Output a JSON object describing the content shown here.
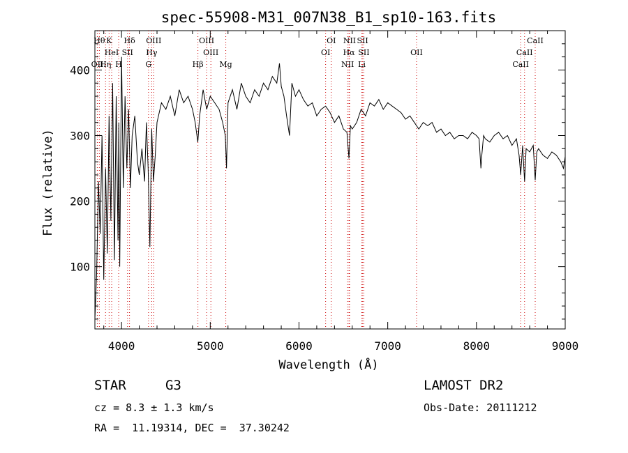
{
  "chart_data": {
    "type": "line",
    "title": "spec-55908-M31_007N38_B1_sp10-163.fits",
    "xlabel": "Wavelength (Å)",
    "ylabel": "Flux (relative)",
    "xlim": [
      3700,
      9000
    ],
    "ylim": [
      5,
      460
    ],
    "x_ticks": [
      4000,
      5000,
      6000,
      7000,
      8000,
      9000
    ],
    "y_ticks": [
      100,
      200,
      300,
      400
    ],
    "grid": false,
    "series": [
      {
        "x": [
          3700,
          3720,
          3740,
          3760,
          3780,
          3800,
          3820,
          3840,
          3860,
          3880,
          3900,
          3920,
          3940,
          3960,
          3970,
          3980,
          4000,
          4020,
          4040,
          4060,
          4080,
          4100,
          4120,
          4150,
          4180,
          4200,
          4230,
          4260,
          4280,
          4300,
          4320,
          4340,
          4360,
          4380,
          4400,
          4450,
          4500,
          4550,
          4600,
          4650,
          4700,
          4750,
          4800,
          4830,
          4860,
          4880,
          4920,
          4960,
          5000,
          5050,
          5100,
          5140,
          5170,
          5183,
          5200,
          5250,
          5300,
          5350,
          5400,
          5450,
          5500,
          5550,
          5600,
          5650,
          5700,
          5750,
          5780,
          5800,
          5830,
          5860,
          5893,
          5920,
          5960,
          6000,
          6050,
          6100,
          6150,
          6200,
          6250,
          6300,
          6350,
          6400,
          6450,
          6500,
          6540,
          6563,
          6580,
          6600,
          6650,
          6700,
          6750,
          6800,
          6850,
          6900,
          6950,
          7000,
          7050,
          7100,
          7150,
          7200,
          7250,
          7300,
          7350,
          7400,
          7450,
          7500,
          7550,
          7600,
          7650,
          7700,
          7750,
          7800,
          7850,
          7900,
          7950,
          8000,
          8030,
          8050,
          8060,
          8080,
          8100,
          8150,
          8200,
          8250,
          8300,
          8350,
          8400,
          8450,
          8480,
          8498,
          8520,
          8542,
          8560,
          8600,
          8640,
          8662,
          8680,
          8700,
          8750,
          8800,
          8850,
          8900,
          8950,
          8980,
          9000
        ],
        "y": [
          20,
          90,
          230,
          150,
          300,
          80,
          250,
          120,
          330,
          170,
          380,
          110,
          360,
          140,
          320,
          100,
          420,
          220,
          360,
          250,
          340,
          220,
          300,
          330,
          260,
          240,
          280,
          230,
          320,
          250,
          130,
          310,
          230,
          270,
          320,
          350,
          340,
          360,
          330,
          370,
          350,
          360,
          340,
          320,
          290,
          330,
          370,
          340,
          360,
          350,
          340,
          320,
          300,
          250,
          350,
          370,
          340,
          380,
          360,
          350,
          370,
          360,
          380,
          370,
          390,
          380,
          410,
          375,
          360,
          330,
          300,
          380,
          360,
          370,
          355,
          345,
          350,
          330,
          340,
          345,
          335,
          320,
          330,
          310,
          305,
          265,
          315,
          310,
          320,
          340,
          330,
          350,
          345,
          355,
          340,
          350,
          345,
          340,
          335,
          325,
          330,
          320,
          310,
          320,
          315,
          320,
          305,
          310,
          300,
          305,
          295,
          300,
          300,
          295,
          305,
          300,
          295,
          250,
          270,
          300,
          295,
          290,
          300,
          305,
          295,
          300,
          285,
          295,
          270,
          240,
          285,
          230,
          280,
          275,
          285,
          232,
          275,
          280,
          270,
          265,
          275,
          270,
          260,
          250,
          268
        ]
      }
    ],
    "line_labels": [
      {
        "wave": 3750,
        "row": 0,
        "text": "Hθ"
      },
      {
        "wave": 3860,
        "row": 0,
        "text": "K"
      },
      {
        "wave": 4090,
        "row": 0,
        "text": "Hδ"
      },
      {
        "wave": 4363,
        "row": 0,
        "text": "OIII"
      },
      {
        "wave": 4959,
        "row": 0,
        "text": "OIII"
      },
      {
        "wave": 6364,
        "row": 0,
        "text": "OI"
      },
      {
        "wave": 6570,
        "row": 0,
        "text": "NII"
      },
      {
        "wave": 6717,
        "row": 0,
        "text": "SII"
      },
      {
        "wave": 8662,
        "row": 0,
        "text": "CaII"
      },
      {
        "wave": 3889,
        "row": 1,
        "text": "HeI"
      },
      {
        "wave": 4068,
        "row": 1,
        "text": "SII"
      },
      {
        "wave": 4340,
        "row": 1,
        "text": "Hγ"
      },
      {
        "wave": 5007,
        "row": 1,
        "text": "OIII"
      },
      {
        "wave": 6300,
        "row": 1,
        "text": "OI"
      },
      {
        "wave": 6563,
        "row": 1,
        "text": "Hα"
      },
      {
        "wave": 6731,
        "row": 1,
        "text": "SII"
      },
      {
        "wave": 7325,
        "row": 1,
        "text": "OII"
      },
      {
        "wave": 8542,
        "row": 1,
        "text": "CaII"
      },
      {
        "wave": 3727,
        "row": 2,
        "text": "OII"
      },
      {
        "wave": 3820,
        "row": 2,
        "text": "Hη"
      },
      {
        "wave": 3968,
        "row": 2,
        "text": "H"
      },
      {
        "wave": 4304,
        "row": 2,
        "text": "G"
      },
      {
        "wave": 4861,
        "row": 2,
        "text": "Hβ"
      },
      {
        "wave": 5175,
        "row": 2,
        "text": "Mg"
      },
      {
        "wave": 6548,
        "row": 2,
        "text": "NII"
      },
      {
        "wave": 6708,
        "row": 2,
        "text": "Li"
      },
      {
        "wave": 8498,
        "row": 2,
        "text": "CaII"
      }
    ]
  },
  "info": {
    "class": "STAR",
    "subclass": "G3",
    "survey": "LAMOST DR2",
    "cz": "cz = 8.3 ± 1.3 km/s",
    "obs_date": "Obs-Date: 20111212",
    "coords": "RA =  11.19314, DEC =  37.30242"
  }
}
